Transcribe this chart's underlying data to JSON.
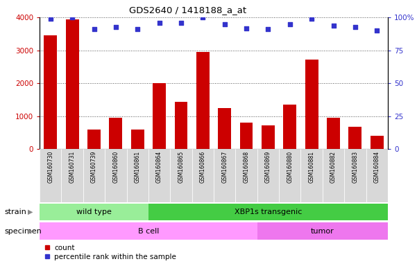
{
  "title": "GDS2640 / 1418188_a_at",
  "samples": [
    "GSM160730",
    "GSM160731",
    "GSM160739",
    "GSM160860",
    "GSM160861",
    "GSM160864",
    "GSM160865",
    "GSM160866",
    "GSM160867",
    "GSM160868",
    "GSM160869",
    "GSM160880",
    "GSM160881",
    "GSM160882",
    "GSM160883",
    "GSM160884"
  ],
  "counts": [
    3450,
    3950,
    600,
    950,
    600,
    2000,
    1450,
    2950,
    1250,
    800,
    720,
    1350,
    2720,
    950,
    680,
    400
  ],
  "percentiles": [
    99,
    100,
    91,
    93,
    91,
    96,
    96,
    100,
    95,
    92,
    91,
    95,
    99,
    94,
    93,
    90
  ],
  "ylim_left": [
    0,
    4000
  ],
  "ylim_right": [
    0,
    100
  ],
  "yticks_left": [
    0,
    1000,
    2000,
    3000,
    4000
  ],
  "yticks_right": [
    0,
    25,
    50,
    75,
    100
  ],
  "ytick_right_labels": [
    "0",
    "25",
    "50",
    "75",
    "100%"
  ],
  "bar_color": "#cc0000",
  "dot_color": "#3333cc",
  "strain_groups": [
    {
      "label": "wild type",
      "start": 0,
      "end": 5,
      "color": "#99ee99"
    },
    {
      "label": "XBP1s transgenic",
      "start": 5,
      "end": 16,
      "color": "#44cc44"
    }
  ],
  "specimen_groups": [
    {
      "label": "B cell",
      "start": 0,
      "end": 10,
      "color": "#ff99ff"
    },
    {
      "label": "tumor",
      "start": 10,
      "end": 16,
      "color": "#ee77ee"
    }
  ],
  "strain_label": "strain",
  "specimen_label": "specimen",
  "legend_count": "count",
  "legend_percentile": "percentile rank within the sample",
  "bg_color": "#d8d8d8",
  "grid_color": "#555555"
}
